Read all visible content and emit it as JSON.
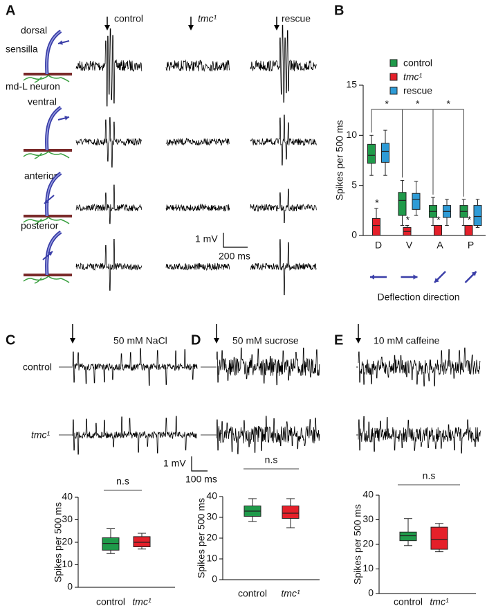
{
  "panel_labels": [
    "A",
    "B",
    "C",
    "D",
    "E"
  ],
  "panel_a": {
    "columns": [
      "control",
      "tmc¹",
      "rescue"
    ],
    "rows": [
      "dorsal",
      "ventral",
      "anterior",
      "posterior"
    ],
    "sensilla_label": "sensilla",
    "neuron_label": "md-L neuron",
    "scale_bar": {
      "voltage": "1 mV",
      "time": "200 ms"
    }
  },
  "panels_cde": {
    "row_labels": [
      "control",
      "tmc¹"
    ],
    "scale_bar": {
      "voltage": "1 mV",
      "time": "100 ms"
    }
  },
  "chart_data": [
    {
      "type": "box",
      "ylabel": "Spikes per 500 ms",
      "xlabel": "Deflection direction",
      "categories": [
        "D",
        "V",
        "A",
        "P"
      ],
      "ylim": [
        0,
        15
      ],
      "yticks": [
        0,
        5,
        10,
        15
      ],
      "legend": "top-right",
      "series": [
        {
          "name": "control",
          "color": "#1f9a4a",
          "min": [
            6,
            1,
            1,
            1
          ],
          "q1": [
            7.2,
            2,
            1.8,
            1.8
          ],
          "median": [
            8,
            3.5,
            2.4,
            2.4
          ],
          "q3": [
            9.1,
            4.3,
            3,
            3
          ],
          "max": [
            10,
            5.5,
            3.8,
            3.6
          ]
        },
        {
          "name": "tmc¹",
          "color": "#e5202a",
          "min": [
            0,
            0,
            0,
            0
          ],
          "q1": [
            0,
            0,
            0,
            0
          ],
          "median": [
            1,
            0.4,
            0,
            0
          ],
          "q3": [
            1.7,
            0.8,
            1,
            1
          ],
          "max": [
            2.7,
            1,
            1,
            1
          ]
        },
        {
          "name": "rescue",
          "color": "#2e9bd6",
          "min": [
            6,
            2,
            1,
            0.8
          ],
          "q1": [
            7.3,
            2.6,
            1.8,
            1
          ],
          "median": [
            8.4,
            3.6,
            2.4,
            1.9
          ],
          "q3": [
            9.2,
            4.2,
            3,
            3
          ],
          "max": [
            10.5,
            5.4,
            3.6,
            3.6
          ]
        }
      ],
      "significance": {
        "vs_control": [
          "*",
          "*",
          "*",
          "*"
        ],
        "between_directions": [
          "*",
          "*",
          "*"
        ]
      }
    },
    {
      "type": "box",
      "title": "50 mM NaCl",
      "ylabel": "Spikes per 500 ms",
      "categories": [
        "control",
        "tmc¹"
      ],
      "colors": [
        "#1f9a4a",
        "#e5202a"
      ],
      "min": [
        15,
        17
      ],
      "q1": [
        16.5,
        18
      ],
      "median": [
        19.5,
        20
      ],
      "q3": [
        22,
        22.5
      ],
      "max": [
        26,
        24
      ],
      "ylim": [
        0,
        40
      ],
      "yticks": [
        0,
        10,
        20,
        30,
        40
      ],
      "annotation": "n.s"
    },
    {
      "type": "box",
      "title": "50 mM sucrose",
      "ylabel": "Spikes per 500 ms",
      "categories": [
        "control",
        "tmc¹"
      ],
      "colors": [
        "#1f9a4a",
        "#e5202a"
      ],
      "min": [
        28,
        25
      ],
      "q1": [
        30.5,
        29.5
      ],
      "median": [
        33,
        32
      ],
      "q3": [
        35.5,
        35.5
      ],
      "max": [
        39,
        39
      ],
      "ylim": [
        0,
        40
      ],
      "yticks": [
        0,
        10,
        20,
        30,
        40
      ],
      "annotation": "n.s"
    },
    {
      "type": "box",
      "title": "10 mM caffeine",
      "ylabel": "Spikes per 500 ms",
      "categories": [
        "control",
        "tmc¹"
      ],
      "colors": [
        "#1f9a4a",
        "#e5202a"
      ],
      "min": [
        19.5,
        17
      ],
      "q1": [
        21.5,
        18
      ],
      "median": [
        23.5,
        22
      ],
      "q3": [
        25,
        27
      ],
      "max": [
        30.5,
        28.5
      ],
      "ylim": [
        0,
        40
      ],
      "yticks": [
        0,
        10,
        20,
        30,
        40
      ],
      "annotation": "n.s"
    }
  ]
}
